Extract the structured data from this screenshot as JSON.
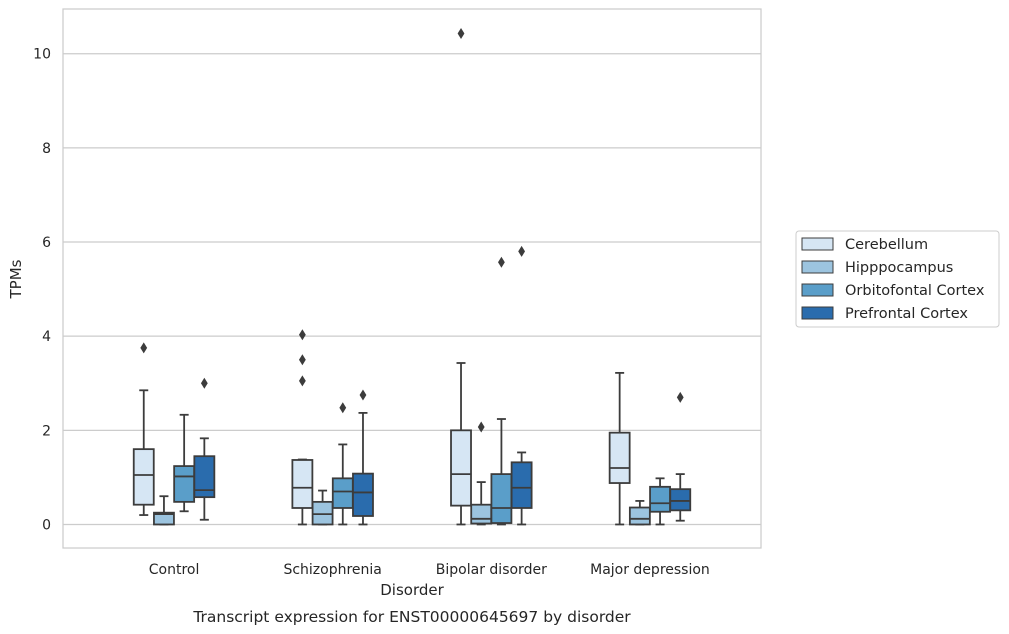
{
  "chart_data": {
    "type": "box",
    "xlabel": "Disorder",
    "ylabel": "TPMs",
    "caption": "Transcript expression for ENST00000645697 by disorder",
    "ylim": [
      -0.5,
      10.95
    ],
    "yticks": [
      0,
      2,
      4,
      6,
      8,
      10
    ],
    "grid": "horizontal",
    "legend_position": "right",
    "categories": [
      "Control",
      "Schizophrenia",
      "Bipolar disorder",
      "Major depression"
    ],
    "series": [
      {
        "name": "Cerebellum",
        "color": "#d6e6f4",
        "boxes": [
          {
            "whisker_low": 0.2,
            "q1": 0.42,
            "median": 1.05,
            "q3": 1.6,
            "whisker_high": 2.85,
            "outliers": [
              3.75
            ]
          },
          {
            "whisker_low": 0.0,
            "q1": 0.35,
            "median": 0.78,
            "q3": 1.37,
            "whisker_high": 1.38,
            "outliers": [
              3.05,
              3.5,
              4.03
            ]
          },
          {
            "whisker_low": 0.0,
            "q1": 0.4,
            "median": 1.07,
            "q3": 2.0,
            "whisker_high": 3.43,
            "outliers": [
              10.43
            ]
          },
          {
            "whisker_low": 0.0,
            "q1": 0.88,
            "median": 1.2,
            "q3": 1.95,
            "whisker_high": 3.22,
            "outliers": []
          }
        ]
      },
      {
        "name": "Hipppocampus",
        "color": "#9cc4df",
        "boxes": [
          {
            "whisker_low": 0.0,
            "q1": 0.0,
            "median": 0.22,
            "q3": 0.25,
            "whisker_high": 0.6,
            "outliers": []
          },
          {
            "whisker_low": 0.0,
            "q1": 0.0,
            "median": 0.22,
            "q3": 0.48,
            "whisker_high": 0.72,
            "outliers": []
          },
          {
            "whisker_low": 0.0,
            "q1": 0.02,
            "median": 0.12,
            "q3": 0.42,
            "whisker_high": 0.9,
            "outliers": [
              2.07
            ]
          },
          {
            "whisker_low": 0.0,
            "q1": 0.0,
            "median": 0.12,
            "q3": 0.36,
            "whisker_high": 0.5,
            "outliers": []
          }
        ]
      },
      {
        "name": "Orbitofontal Cortex",
        "color": "#5a9ec9",
        "boxes": [
          {
            "whisker_low": 0.28,
            "q1": 0.48,
            "median": 1.02,
            "q3": 1.24,
            "whisker_high": 2.33,
            "outliers": []
          },
          {
            "whisker_low": 0.0,
            "q1": 0.35,
            "median": 0.7,
            "q3": 0.98,
            "whisker_high": 1.7,
            "outliers": [
              2.48
            ]
          },
          {
            "whisker_low": 0.0,
            "q1": 0.03,
            "median": 0.35,
            "q3": 1.07,
            "whisker_high": 2.24,
            "outliers": [
              5.57
            ]
          },
          {
            "whisker_low": 0.0,
            "q1": 0.27,
            "median": 0.45,
            "q3": 0.8,
            "whisker_high": 0.98,
            "outliers": []
          }
        ]
      },
      {
        "name": "Prefrontal Cortex",
        "color": "#2a6cad",
        "boxes": [
          {
            "whisker_low": 0.1,
            "q1": 0.58,
            "median": 0.73,
            "q3": 1.45,
            "whisker_high": 1.83,
            "outliers": [
              3.0
            ]
          },
          {
            "whisker_low": 0.0,
            "q1": 0.18,
            "median": 0.68,
            "q3": 1.08,
            "whisker_high": 2.37,
            "outliers": [
              2.75
            ]
          },
          {
            "whisker_low": 0.0,
            "q1": 0.35,
            "median": 0.78,
            "q3": 1.32,
            "whisker_high": 1.53,
            "outliers": [
              5.8
            ]
          },
          {
            "whisker_low": 0.08,
            "q1": 0.3,
            "median": 0.5,
            "q3": 0.75,
            "whisker_high": 1.07,
            "outliers": [
              2.7
            ]
          }
        ]
      }
    ]
  }
}
